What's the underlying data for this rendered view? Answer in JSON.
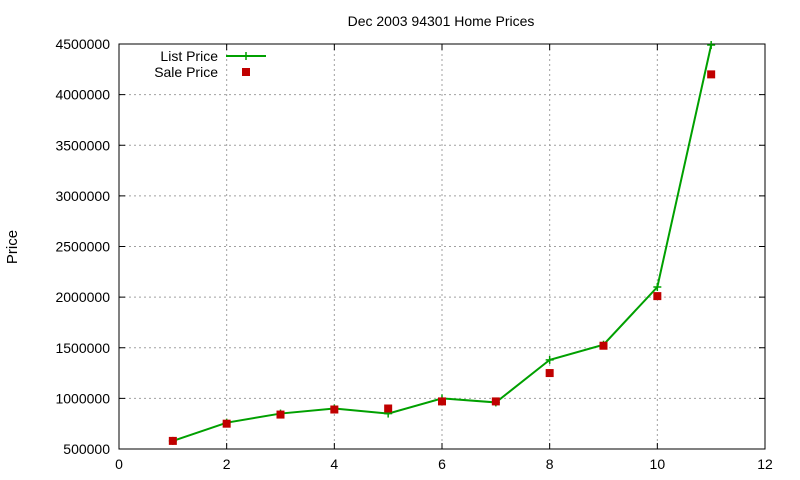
{
  "chart_data": {
    "type": "line",
    "title": "Dec 2003 94301 Home Prices",
    "xlabel": "",
    "ylabel": "Price",
    "xlim": [
      0,
      12
    ],
    "ylim": [
      500000,
      4500000
    ],
    "x_ticks": [
      "0",
      "2",
      "4",
      "6",
      "8",
      "10",
      "12"
    ],
    "y_ticks": [
      "500000",
      "1000000",
      "1500000",
      "2000000",
      "2500000",
      "3000000",
      "3500000",
      "4000000",
      "4500000"
    ],
    "grid": true,
    "legend_position": "top-left",
    "series": [
      {
        "name": "List Price",
        "style": "line+plus",
        "color": "#00a000",
        "x": [
          1,
          2,
          3,
          4,
          5,
          6,
          7,
          8,
          9,
          10,
          11
        ],
        "y": [
          580000,
          760000,
          850000,
          900000,
          850000,
          1000000,
          960000,
          1380000,
          1530000,
          2100000,
          4490000
        ]
      },
      {
        "name": "Sale Price",
        "style": "square",
        "color": "#c00000",
        "x": [
          1,
          2,
          3,
          4,
          5,
          6,
          7,
          8,
          9,
          10,
          11
        ],
        "y": [
          580000,
          750000,
          840000,
          890000,
          900000,
          970000,
          970000,
          1250000,
          1520000,
          2010000,
          4200000
        ]
      }
    ]
  }
}
